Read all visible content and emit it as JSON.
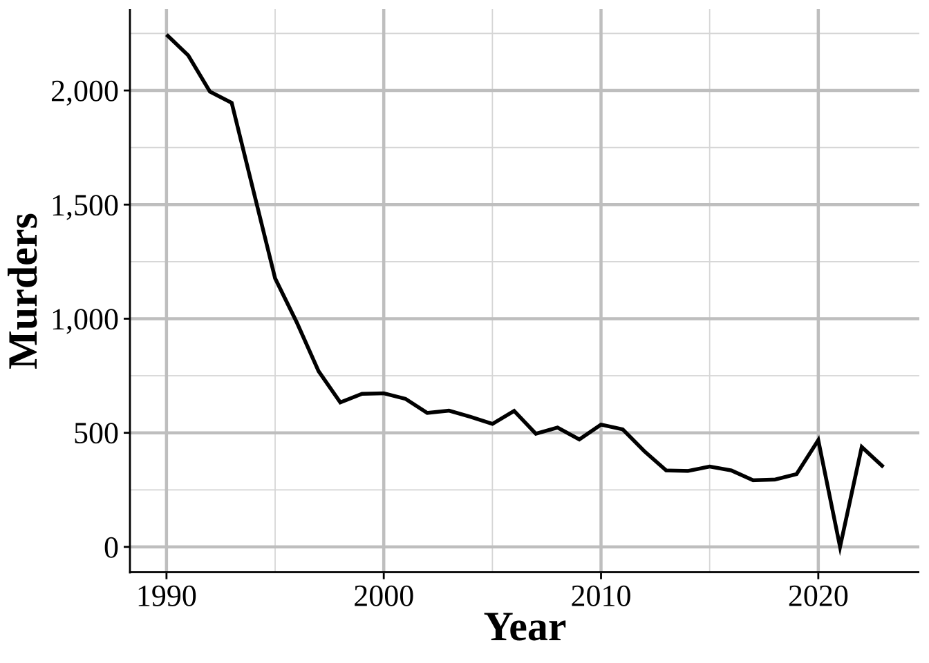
{
  "figure": {
    "background": "#ffffff",
    "title": ""
  },
  "chart_data": {
    "type": "line",
    "title": "",
    "xlabel": "Year",
    "ylabel": "Murders",
    "series": [
      {
        "name": "Murders",
        "x": [
          1990,
          1991,
          1992,
          1993,
          1994,
          1995,
          1996,
          1997,
          1998,
          1999,
          2000,
          2001,
          2002,
          2003,
          2004,
          2005,
          2006,
          2007,
          2008,
          2009,
          2010,
          2011,
          2012,
          2013,
          2014,
          2015,
          2016,
          2017,
          2018,
          2019,
          2020,
          2021,
          2022,
          2023
        ],
        "y": [
          2245,
          2154,
          1995,
          1946,
          1561,
          1177,
          983,
          770,
          633,
          671,
          673,
          649,
          587,
          597,
          570,
          539,
          596,
          496,
          523,
          471,
          536,
          515,
          419,
          335,
          333,
          352,
          335,
          292,
          295,
          319,
          468,
          0,
          438,
          350
        ]
      }
    ],
    "xlim": [
      1988.35,
      2024.65
    ],
    "ylim": [
      -112.25,
      2357.25
    ],
    "x_major_ticks": [
      {
        "value": 1990,
        "label": "1990"
      },
      {
        "value": 2000,
        "label": "2000"
      },
      {
        "value": 2010,
        "label": "2010"
      },
      {
        "value": 2020,
        "label": "2020"
      }
    ],
    "x_minor_ticks": [
      1995,
      2005,
      2015
    ],
    "y_major_ticks": [
      {
        "value": 0,
        "label": "0"
      },
      {
        "value": 500,
        "label": "500"
      },
      {
        "value": 1000,
        "label": "1,000"
      },
      {
        "value": 1500,
        "label": "1,500"
      },
      {
        "value": 2000,
        "label": "2,000"
      }
    ],
    "y_minor_ticks": [
      250,
      750,
      1250,
      1750,
      2250
    ],
    "grid": "major+minor",
    "legend": "none",
    "colors": {
      "line": "#000000",
      "grid_major": "#bebebe",
      "grid_minor": "#d6d6d6",
      "axis": "#000000",
      "text": "#000000",
      "background": "#ffffff"
    }
  }
}
